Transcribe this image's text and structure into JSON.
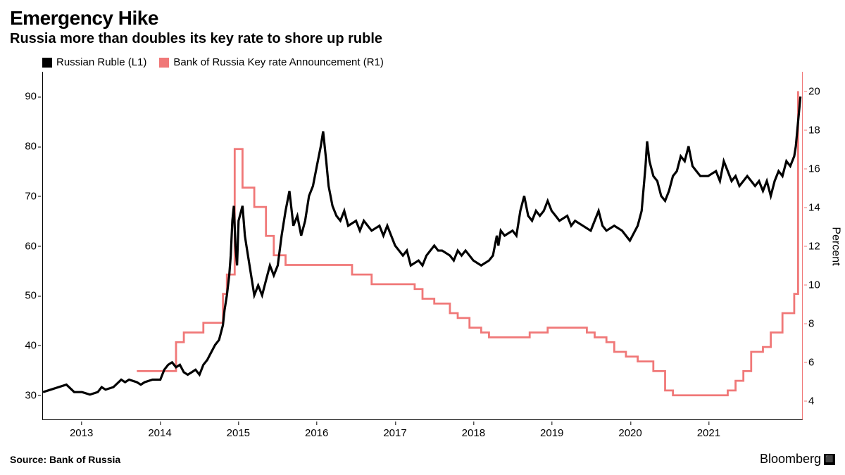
{
  "title": "Emergency Hike",
  "subtitle": "Russia more than doubles its key rate to shore up ruble",
  "source": "Source: Bank of Russia",
  "brand": "Bloomberg",
  "chart": {
    "type": "line-dual-axis",
    "legend": {
      "series1": "Russian Ruble (L1)",
      "series2": "Bank of Russia Key rate Announcement (R1)"
    },
    "colors": {
      "series1": "#000000",
      "series2": "#f07878",
      "background": "#ffffff",
      "axis": "#000000",
      "right_axis": "#f07878"
    },
    "line_width": {
      "series1": 1.6,
      "series2": 1.4
    },
    "x": {
      "min": 2012.5,
      "max": 2022.2,
      "ticks": [
        2013,
        2014,
        2015,
        2016,
        2017,
        2018,
        2019,
        2020,
        2021
      ],
      "labels": [
        "2013",
        "2014",
        "2015",
        "2016",
        "2017",
        "2018",
        "2019",
        "2020",
        "2021"
      ]
    },
    "y_left": {
      "label": "",
      "min": 25,
      "max": 95,
      "ticks": [
        30,
        40,
        50,
        60,
        70,
        80,
        90
      ]
    },
    "y_right": {
      "label": "Percent",
      "min": 3,
      "max": 21,
      "ticks": [
        4,
        6,
        8,
        10,
        12,
        14,
        16,
        18,
        20
      ]
    },
    "fontsize": {
      "title": 28,
      "subtitle": 20,
      "axis": 15,
      "legend": 15,
      "source": 14
    },
    "series1_data": [
      [
        2012.5,
        30.5
      ],
      [
        2012.6,
        31
      ],
      [
        2012.7,
        31.5
      ],
      [
        2012.8,
        32
      ],
      [
        2012.9,
        30.5
      ],
      [
        2013.0,
        30.5
      ],
      [
        2013.1,
        30
      ],
      [
        2013.2,
        30.5
      ],
      [
        2013.25,
        31.5
      ],
      [
        2013.3,
        31
      ],
      [
        2013.4,
        31.5
      ],
      [
        2013.5,
        33
      ],
      [
        2013.55,
        32.5
      ],
      [
        2013.6,
        33
      ],
      [
        2013.7,
        32.5
      ],
      [
        2013.75,
        32
      ],
      [
        2013.8,
        32.5
      ],
      [
        2013.9,
        33
      ],
      [
        2014.0,
        33
      ],
      [
        2014.05,
        35
      ],
      [
        2014.1,
        36
      ],
      [
        2014.15,
        36.5
      ],
      [
        2014.2,
        35.5
      ],
      [
        2014.25,
        36
      ],
      [
        2014.3,
        34.5
      ],
      [
        2014.35,
        34
      ],
      [
        2014.4,
        34.5
      ],
      [
        2014.45,
        35
      ],
      [
        2014.5,
        34
      ],
      [
        2014.55,
        36
      ],
      [
        2014.6,
        37
      ],
      [
        2014.65,
        38.5
      ],
      [
        2014.7,
        40
      ],
      [
        2014.75,
        41
      ],
      [
        2014.8,
        44
      ],
      [
        2014.82,
        47
      ],
      [
        2014.85,
        50
      ],
      [
        2014.88,
        54
      ],
      [
        2014.9,
        58
      ],
      [
        2014.92,
        65
      ],
      [
        2014.94,
        68
      ],
      [
        2014.96,
        60
      ],
      [
        2014.98,
        56
      ],
      [
        2015.0,
        65
      ],
      [
        2015.05,
        68
      ],
      [
        2015.08,
        62
      ],
      [
        2015.1,
        60
      ],
      [
        2015.15,
        55
      ],
      [
        2015.2,
        50
      ],
      [
        2015.25,
        52
      ],
      [
        2015.3,
        50
      ],
      [
        2015.35,
        53
      ],
      [
        2015.4,
        56
      ],
      [
        2015.45,
        54
      ],
      [
        2015.5,
        56
      ],
      [
        2015.55,
        62
      ],
      [
        2015.6,
        67
      ],
      [
        2015.65,
        71
      ],
      [
        2015.7,
        64
      ],
      [
        2015.75,
        66
      ],
      [
        2015.8,
        62
      ],
      [
        2015.85,
        65
      ],
      [
        2015.9,
        70
      ],
      [
        2015.95,
        72
      ],
      [
        2016.0,
        76
      ],
      [
        2016.05,
        80
      ],
      [
        2016.08,
        83
      ],
      [
        2016.12,
        77
      ],
      [
        2016.15,
        72
      ],
      [
        2016.2,
        68
      ],
      [
        2016.25,
        66
      ],
      [
        2016.3,
        65
      ],
      [
        2016.35,
        67
      ],
      [
        2016.4,
        64
      ],
      [
        2016.5,
        65
      ],
      [
        2016.55,
        63
      ],
      [
        2016.6,
        65
      ],
      [
        2016.7,
        63
      ],
      [
        2016.8,
        64
      ],
      [
        2016.85,
        62
      ],
      [
        2016.9,
        64
      ],
      [
        2017.0,
        60
      ],
      [
        2017.1,
        58
      ],
      [
        2017.15,
        59
      ],
      [
        2017.2,
        56
      ],
      [
        2017.3,
        57
      ],
      [
        2017.35,
        56
      ],
      [
        2017.4,
        58
      ],
      [
        2017.5,
        60
      ],
      [
        2017.55,
        59
      ],
      [
        2017.6,
        59
      ],
      [
        2017.7,
        58
      ],
      [
        2017.75,
        57
      ],
      [
        2017.8,
        59
      ],
      [
        2017.85,
        58
      ],
      [
        2017.9,
        59
      ],
      [
        2018.0,
        57
      ],
      [
        2018.1,
        56
      ],
      [
        2018.2,
        57
      ],
      [
        2018.25,
        58
      ],
      [
        2018.3,
        62
      ],
      [
        2018.32,
        60
      ],
      [
        2018.35,
        63
      ],
      [
        2018.4,
        62
      ],
      [
        2018.5,
        63
      ],
      [
        2018.55,
        62
      ],
      [
        2018.6,
        67
      ],
      [
        2018.65,
        70
      ],
      [
        2018.7,
        66
      ],
      [
        2018.75,
        65
      ],
      [
        2018.8,
        67
      ],
      [
        2018.85,
        66
      ],
      [
        2018.9,
        67
      ],
      [
        2018.95,
        69
      ],
      [
        2019.0,
        67
      ],
      [
        2019.05,
        66
      ],
      [
        2019.1,
        65
      ],
      [
        2019.2,
        66
      ],
      [
        2019.25,
        64
      ],
      [
        2019.3,
        65
      ],
      [
        2019.4,
        64
      ],
      [
        2019.5,
        63
      ],
      [
        2019.55,
        65
      ],
      [
        2019.6,
        67
      ],
      [
        2019.65,
        64
      ],
      [
        2019.7,
        63
      ],
      [
        2019.8,
        64
      ],
      [
        2019.9,
        63
      ],
      [
        2019.95,
        62
      ],
      [
        2020.0,
        61
      ],
      [
        2020.1,
        64
      ],
      [
        2020.15,
        67
      ],
      [
        2020.2,
        76
      ],
      [
        2020.22,
        81
      ],
      [
        2020.25,
        77
      ],
      [
        2020.3,
        74
      ],
      [
        2020.35,
        73
      ],
      [
        2020.4,
        70
      ],
      [
        2020.45,
        69
      ],
      [
        2020.5,
        71
      ],
      [
        2020.55,
        74
      ],
      [
        2020.6,
        75
      ],
      [
        2020.65,
        78
      ],
      [
        2020.7,
        77
      ],
      [
        2020.75,
        80
      ],
      [
        2020.8,
        76
      ],
      [
        2020.85,
        75
      ],
      [
        2020.9,
        74
      ],
      [
        2021.0,
        74
      ],
      [
        2021.1,
        75
      ],
      [
        2021.15,
        73
      ],
      [
        2021.2,
        77
      ],
      [
        2021.25,
        75
      ],
      [
        2021.3,
        73
      ],
      [
        2021.35,
        74
      ],
      [
        2021.4,
        72
      ],
      [
        2021.45,
        73
      ],
      [
        2021.5,
        74
      ],
      [
        2021.55,
        73
      ],
      [
        2021.6,
        72
      ],
      [
        2021.65,
        73
      ],
      [
        2021.7,
        71
      ],
      [
        2021.75,
        73
      ],
      [
        2021.8,
        70
      ],
      [
        2021.85,
        73
      ],
      [
        2021.9,
        75
      ],
      [
        2021.95,
        74
      ],
      [
        2022.0,
        77
      ],
      [
        2022.05,
        76
      ],
      [
        2022.1,
        78
      ],
      [
        2022.12,
        80
      ],
      [
        2022.15,
        85
      ],
      [
        2022.18,
        90
      ]
    ],
    "series2_data": [
      [
        2013.7,
        5.5
      ],
      [
        2014.0,
        5.5
      ],
      [
        2014.2,
        7
      ],
      [
        2014.3,
        7.5
      ],
      [
        2014.35,
        7.5
      ],
      [
        2014.55,
        8
      ],
      [
        2014.8,
        9.5
      ],
      [
        2014.85,
        10.5
      ],
      [
        2014.95,
        17
      ],
      [
        2015.05,
        15
      ],
      [
        2015.2,
        14
      ],
      [
        2015.35,
        12.5
      ],
      [
        2015.45,
        11.5
      ],
      [
        2015.6,
        11
      ],
      [
        2016.4,
        11
      ],
      [
        2016.45,
        10.5
      ],
      [
        2016.7,
        10
      ],
      [
        2017.2,
        10
      ],
      [
        2017.25,
        9.75
      ],
      [
        2017.35,
        9.25
      ],
      [
        2017.5,
        9
      ],
      [
        2017.7,
        8.5
      ],
      [
        2017.8,
        8.25
      ],
      [
        2017.95,
        7.75
      ],
      [
        2018.1,
        7.5
      ],
      [
        2018.2,
        7.25
      ],
      [
        2018.7,
        7.25
      ],
      [
        2018.72,
        7.5
      ],
      [
        2018.95,
        7.75
      ],
      [
        2019.4,
        7.75
      ],
      [
        2019.45,
        7.5
      ],
      [
        2019.55,
        7.25
      ],
      [
        2019.7,
        7
      ],
      [
        2019.8,
        6.5
      ],
      [
        2019.95,
        6.25
      ],
      [
        2020.1,
        6
      ],
      [
        2020.3,
        5.5
      ],
      [
        2020.45,
        4.5
      ],
      [
        2020.55,
        4.25
      ],
      [
        2021.2,
        4.25
      ],
      [
        2021.25,
        4.5
      ],
      [
        2021.35,
        5
      ],
      [
        2021.45,
        5.5
      ],
      [
        2021.55,
        6.5
      ],
      [
        2021.7,
        6.75
      ],
      [
        2021.8,
        7.5
      ],
      [
        2021.95,
        8.5
      ],
      [
        2022.1,
        9.5
      ],
      [
        2022.15,
        20
      ]
    ]
  }
}
